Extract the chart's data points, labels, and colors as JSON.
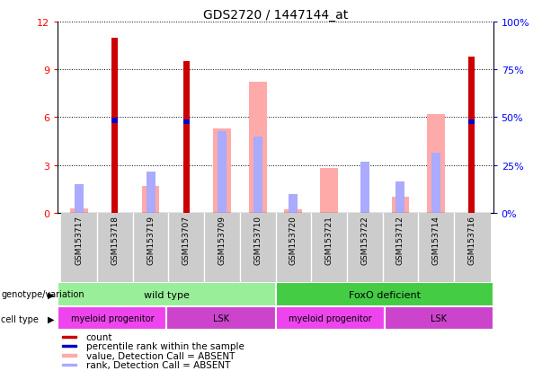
{
  "title": "GDS2720 / 1447144_at",
  "samples": [
    "GSM153717",
    "GSM153718",
    "GSM153719",
    "GSM153707",
    "GSM153709",
    "GSM153710",
    "GSM153720",
    "GSM153721",
    "GSM153722",
    "GSM153712",
    "GSM153714",
    "GSM153716"
  ],
  "count_values": [
    0,
    11.0,
    0,
    9.5,
    0,
    0,
    0,
    0,
    0,
    0,
    0,
    9.8
  ],
  "rank_values": [
    0,
    5.8,
    0,
    5.7,
    0,
    0,
    0,
    0,
    0,
    0,
    0,
    5.7
  ],
  "value_absent": [
    0.3,
    0,
    1.7,
    0,
    5.3,
    8.2,
    0.2,
    2.8,
    0,
    1.0,
    6.2,
    0
  ],
  "rank_absent": [
    1.8,
    0,
    2.6,
    0,
    5.1,
    4.8,
    1.2,
    0,
    3.2,
    2.0,
    3.8,
    0
  ],
  "ylim": [
    0,
    12
  ],
  "yticks_left": [
    0,
    3,
    6,
    9,
    12
  ],
  "ylabel_right_labels": [
    "0%",
    "25%",
    "50%",
    "75%",
    "100%"
  ],
  "count_color": "#cc0000",
  "rank_color": "#0000cc",
  "value_absent_color": "#ffaaaa",
  "rank_absent_color": "#aaaaff",
  "genotype_wt_label": "wild type",
  "genotype_foxo_label": "FoxO deficient",
  "genotype_wt_color": "#99ee99",
  "genotype_foxo_color": "#44cc44",
  "celltype_myeloid_color": "#ee44ee",
  "celltype_lsk_color": "#cc44cc",
  "celltype_myeloid_label": "myeloid progenitor",
  "celltype_lsk_label": "LSK",
  "legend_items": [
    [
      "#cc0000",
      "count"
    ],
    [
      "#0000cc",
      "percentile rank within the sample"
    ],
    [
      "#ffaaaa",
      "value, Detection Call = ABSENT"
    ],
    [
      "#aaaaff",
      "rank, Detection Call = ABSENT"
    ]
  ]
}
